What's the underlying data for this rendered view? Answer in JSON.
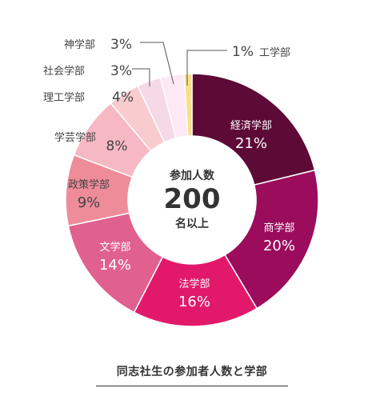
{
  "chart_data": {
    "type": "pie",
    "style": "donut",
    "categories": [
      "経済学部",
      "商学部",
      "法学部",
      "文学部",
      "政策学部",
      "学芸学部",
      "理工学部",
      "社会学部",
      "神学部",
      "工学部"
    ],
    "values": [
      21,
      20,
      16,
      14,
      9,
      8,
      4,
      3,
      3,
      1
    ],
    "value_labels": [
      "21%",
      "20%",
      "16%",
      "14%",
      "9%",
      "8%",
      "4%",
      "3%",
      "3%",
      "1%"
    ],
    "colors": [
      "#5d0a37",
      "#9b0c5d",
      "#e2196b",
      "#e0608e",
      "#ef8c9a",
      "#f6b8c3",
      "#f8cbcf",
      "#f5d9e6",
      "#fde8f3",
      "#f7e08a"
    ],
    "label_color_inside": "#ffffff",
    "label_color_outside": "#444444",
    "center": {
      "top": "参加人数",
      "number": "200",
      "bottom": "名以上"
    },
    "caption": "同志社生の参加者人数と学部"
  }
}
